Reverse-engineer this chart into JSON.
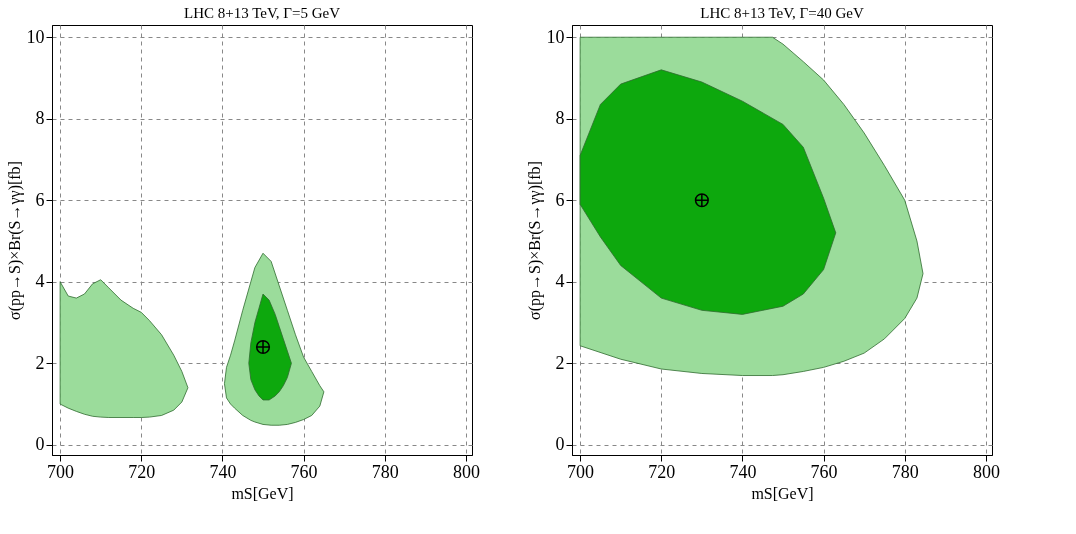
{
  "chart_data": [
    {
      "type": "area",
      "title": "LHC 8+13 TeV,  Γ=5 GeV",
      "xlabel": "mS[GeV]",
      "ylabel": "σ(pp→S)×Br(S→γγ)[fb]",
      "xlim": [
        698,
        801.5
      ],
      "ylim": [
        -0.25,
        10.3
      ],
      "xticks": [
        700,
        720,
        740,
        760,
        780,
        800
      ],
      "yticks": [
        0,
        2,
        4,
        6,
        8,
        10
      ],
      "grid": true,
      "legend": false,
      "series": [
        {
          "color": "#9bdc9b",
          "x": [
            700,
            702,
            704,
            706,
            708,
            710,
            712,
            715,
            718,
            720,
            722,
            725,
            728,
            730,
            731.5,
            730,
            728,
            725,
            722,
            720,
            718,
            715,
            712,
            710,
            708,
            706,
            704,
            702,
            700
          ],
          "values": [
            4.0,
            3.65,
            3.6,
            3.7,
            3.95,
            4.05,
            3.85,
            3.55,
            3.35,
            3.25,
            3.05,
            2.7,
            2.2,
            1.8,
            1.4,
            1.05,
            0.85,
            0.72,
            0.68,
            0.67,
            0.67,
            0.67,
            0.67,
            0.68,
            0.7,
            0.75,
            0.82,
            0.9,
            1.0
          ]
        },
        {
          "color": "#9bdc9b",
          "x": [
            740.5,
            741,
            742,
            743,
            745,
            747,
            748,
            750,
            752,
            754,
            756,
            758,
            760,
            762,
            764,
            765,
            764,
            762,
            760,
            758,
            756,
            754,
            752,
            750,
            748,
            747,
            745,
            743,
            742,
            741
          ],
          "values": [
            1.5,
            1.9,
            2.2,
            2.55,
            3.3,
            4.0,
            4.35,
            4.7,
            4.5,
            3.9,
            3.3,
            2.7,
            2.15,
            1.8,
            1.45,
            1.3,
            0.95,
            0.72,
            0.62,
            0.55,
            0.5,
            0.48,
            0.48,
            0.5,
            0.56,
            0.6,
            0.72,
            0.9,
            1.0,
            1.15
          ]
        },
        {
          "color": "#0da80d",
          "x": [
            746.5,
            747,
            748,
            749,
            750,
            751.5,
            753,
            754,
            755,
            756,
            757,
            756,
            755,
            754,
            753,
            751.5,
            750,
            749,
            748,
            747
          ],
          "values": [
            2.0,
            2.5,
            3.0,
            3.35,
            3.7,
            3.55,
            3.2,
            2.9,
            2.6,
            2.3,
            2.0,
            1.65,
            1.45,
            1.3,
            1.2,
            1.1,
            1.1,
            1.2,
            1.35,
            1.6
          ]
        },
        {
          "type": "scatter",
          "color": "#000000",
          "marker": "cross",
          "x": [
            750
          ],
          "values": [
            2.4
          ]
        }
      ]
    },
    {
      "type": "area",
      "title": "LHC 8+13 TeV,  Γ=40 GeV",
      "xlabel": "mS[GeV]",
      "ylabel": "σ(pp→S)×Br(S→γγ)[fb]",
      "xlim": [
        698,
        801.5
      ],
      "ylim": [
        -0.25,
        10.3
      ],
      "xticks": [
        700,
        720,
        740,
        760,
        780,
        800
      ],
      "yticks": [
        0,
        2,
        4,
        6,
        8,
        10
      ],
      "grid": true,
      "legend": false,
      "series": [
        {
          "color": "#9bdc9b",
          "x": [
            700,
            710,
            720,
            730,
            740,
            747.4,
            750,
            755,
            760,
            765,
            770,
            775,
            780,
            783,
            784.5,
            783,
            780,
            775,
            770,
            765,
            760,
            755,
            750,
            747.4,
            740,
            730,
            720,
            710,
            700
          ],
          "values": [
            10,
            10,
            10,
            10,
            10,
            10,
            9.83,
            9.4,
            8.95,
            8.35,
            7.65,
            6.85,
            6.0,
            5.0,
            4.2,
            3.6,
            3.1,
            2.6,
            2.25,
            2.05,
            1.9,
            1.8,
            1.72,
            1.7,
            1.7,
            1.75,
            1.86,
            2.1,
            2.43
          ]
        },
        {
          "color": "#0da80d",
          "x": [
            700,
            705,
            710,
            720,
            730,
            740,
            750,
            755,
            760,
            763,
            760,
            755,
            750,
            740,
            730,
            720,
            710,
            705,
            700
          ],
          "values": [
            7.1,
            8.35,
            8.85,
            9.2,
            8.9,
            8.43,
            7.86,
            7.3,
            6.05,
            5.2,
            4.3,
            3.7,
            3.4,
            3.2,
            3.3,
            3.6,
            4.4,
            5.1,
            5.9
          ]
        },
        {
          "type": "scatter",
          "color": "#000000",
          "marker": "cross",
          "x": [
            730
          ],
          "values": [
            6
          ]
        }
      ]
    }
  ]
}
